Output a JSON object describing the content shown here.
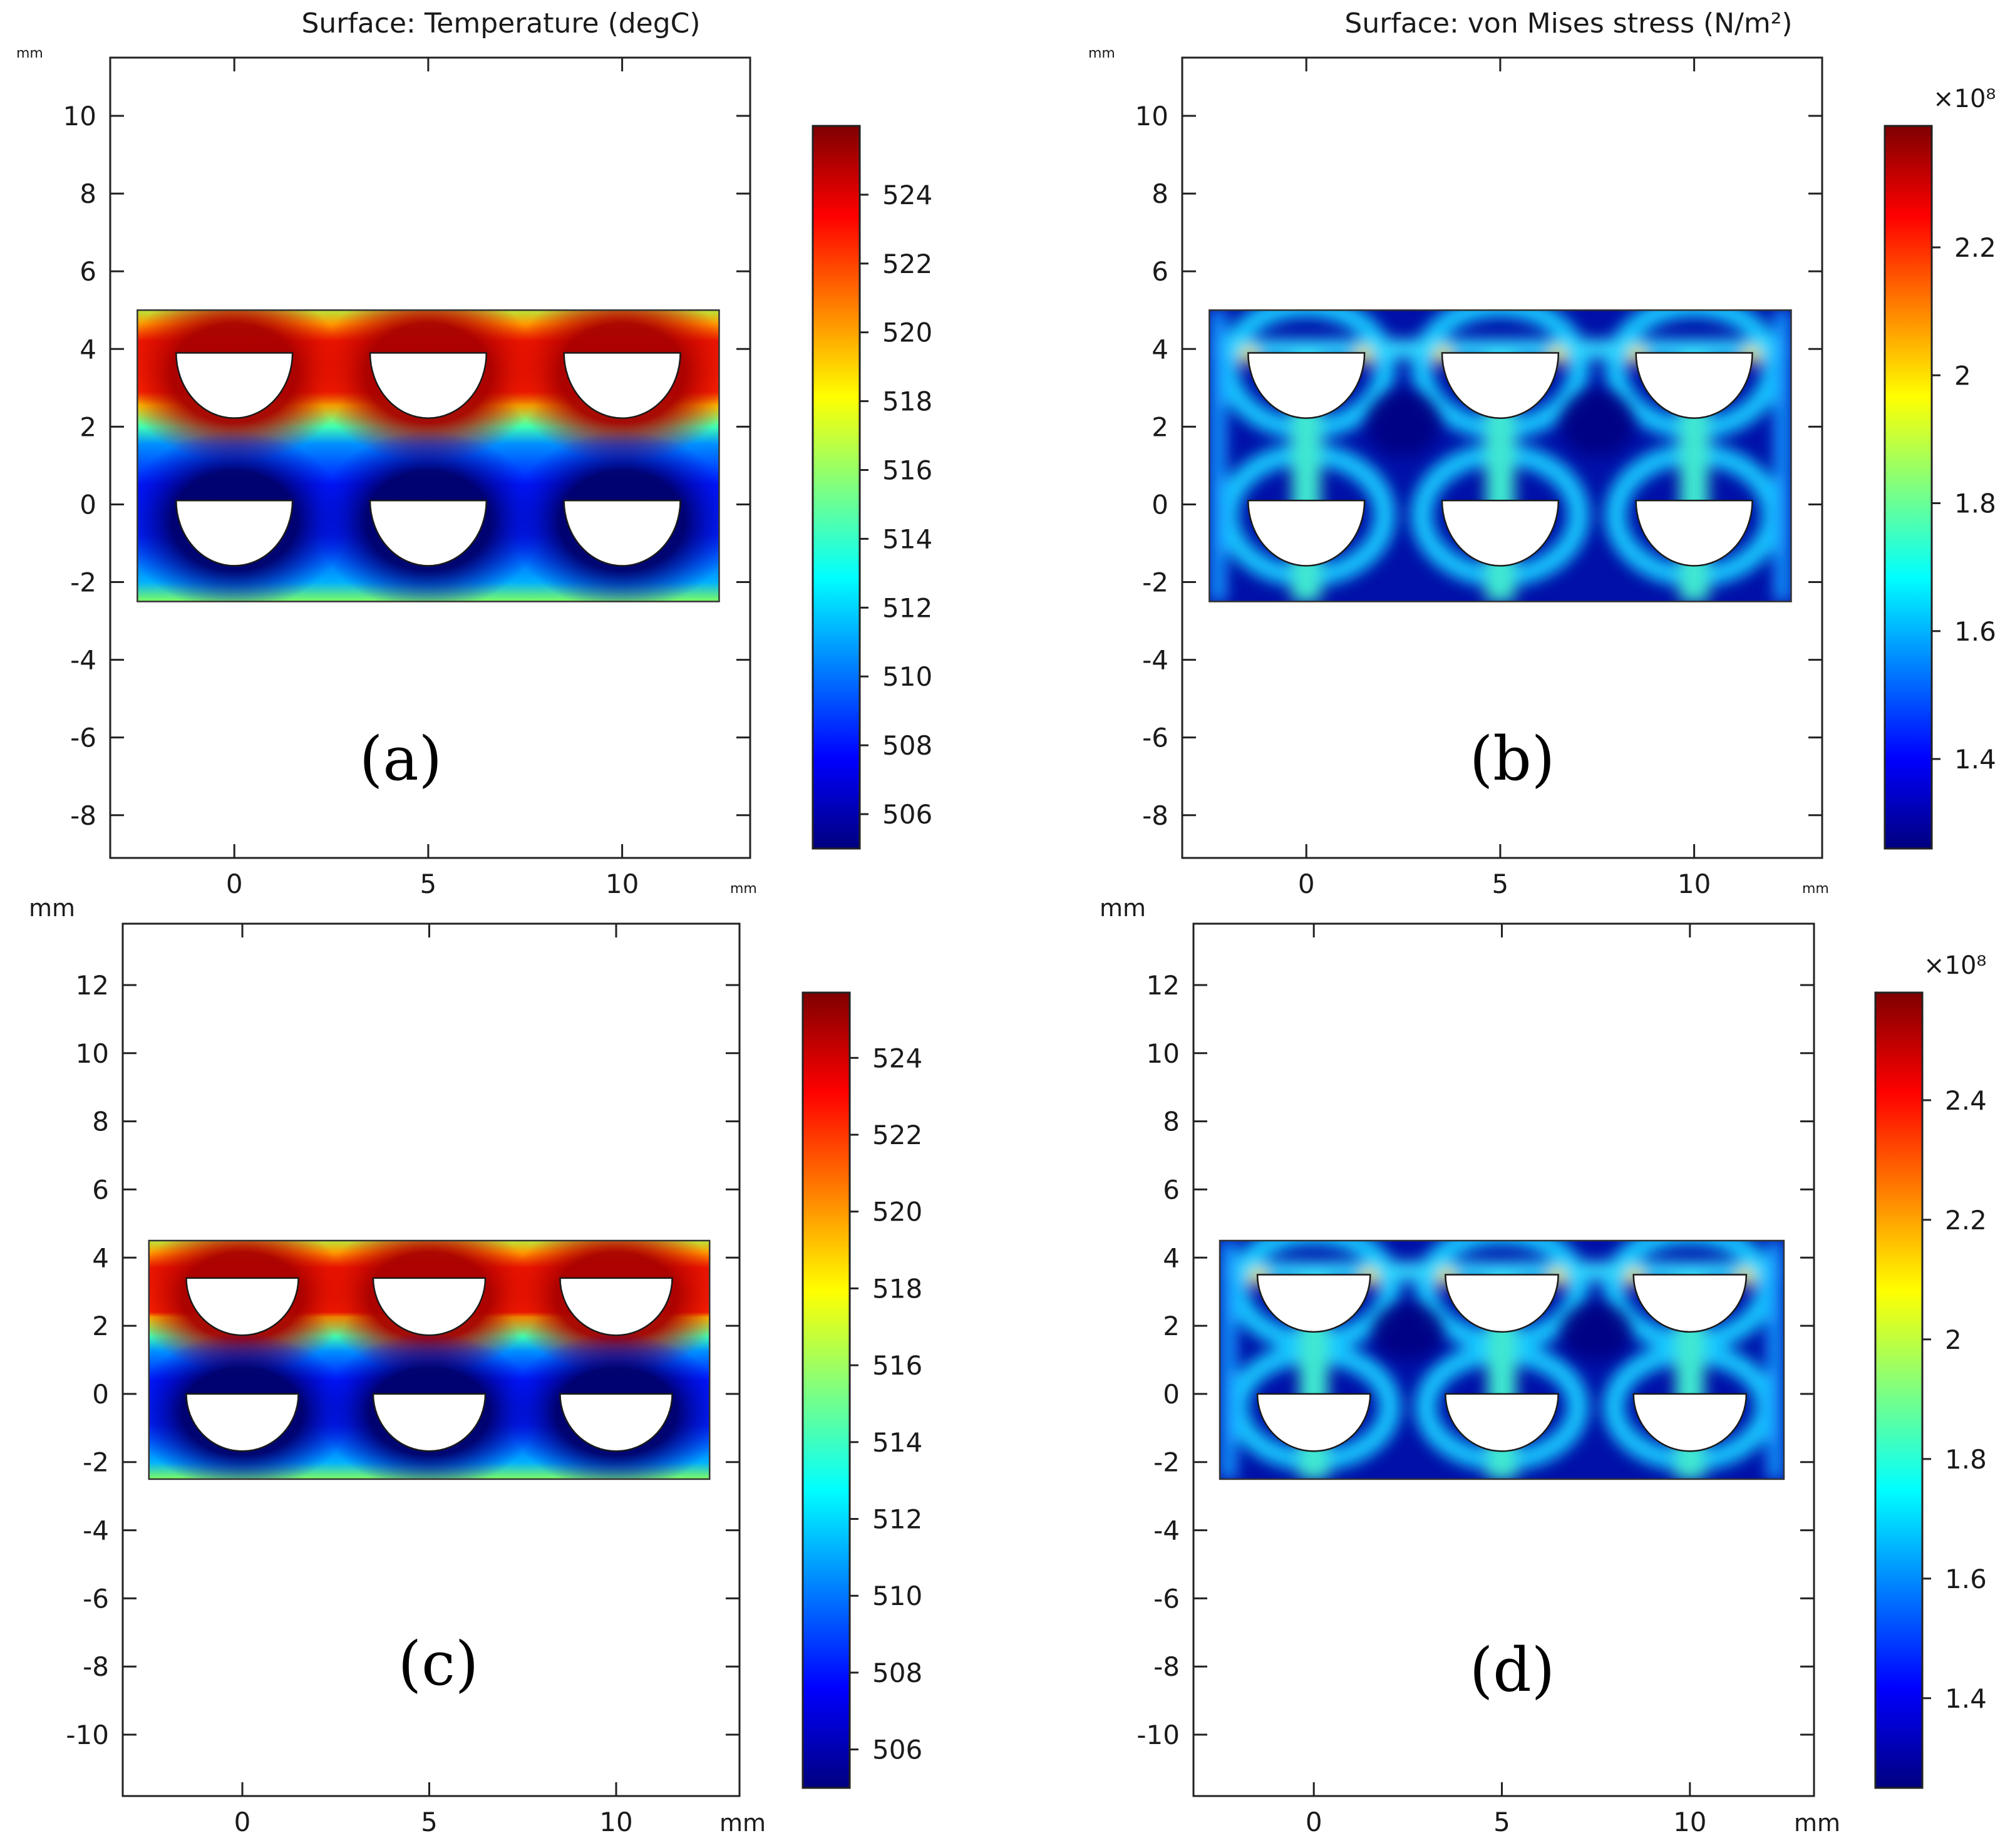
{
  "colors": {
    "frame": "#222222",
    "text": "#1a1a1a",
    "hole_fill": "#ffffff",
    "jet": [
      "#00007f",
      "#0000ff",
      "#007fff",
      "#00ffff",
      "#7fff7f",
      "#ffff00",
      "#ff7f00",
      "#ff0000",
      "#7f0000"
    ]
  },
  "chart_data": [
    {
      "id": "a",
      "type": "heatmap",
      "title": "Surface: Temperature (degC)",
      "panel_label": "(a)",
      "field": "temperature",
      "xlabel": "mm",
      "ylabel": "mm",
      "xlim": [
        -3.2,
        13.3
      ],
      "ylim": [
        -9.1,
        11.5
      ],
      "xticks": [
        0,
        5,
        10
      ],
      "yticks": [
        -8,
        -6,
        -4,
        -2,
        0,
        2,
        4,
        6,
        8,
        10
      ],
      "domain": {
        "x": [
          -2.5,
          12.5
        ],
        "y": [
          -2.5,
          5
        ]
      },
      "holes": [
        {
          "cx": 0,
          "cy": 3.9,
          "r": 1.5
        },
        {
          "cx": 5,
          "cy": 3.9,
          "r": 1.5
        },
        {
          "cx": 10,
          "cy": 3.9,
          "r": 1.5
        },
        {
          "cx": 0,
          "cy": 0.1,
          "r": 1.5
        },
        {
          "cx": 5,
          "cy": 0.1,
          "r": 1.5
        },
        {
          "cx": 10,
          "cy": 0.1,
          "r": 1.5
        }
      ],
      "colorbar": {
        "range": [
          505,
          526
        ],
        "ticks": [
          506,
          508,
          510,
          512,
          514,
          516,
          518,
          520,
          522,
          524
        ],
        "multiplier": ""
      }
    },
    {
      "id": "b",
      "type": "heatmap",
      "title": "Surface: von Mises stress (N/m²)",
      "panel_label": "(b)",
      "field": "stress",
      "xlabel": "mm",
      "ylabel": "mm",
      "xlim": [
        -3.2,
        13.3
      ],
      "ylim": [
        -9.1,
        11.5
      ],
      "xticks": [
        0,
        5,
        10
      ],
      "yticks": [
        -8,
        -6,
        -4,
        -2,
        0,
        2,
        4,
        6,
        8,
        10
      ],
      "domain": {
        "x": [
          -2.5,
          12.5
        ],
        "y": [
          -2.5,
          5
        ]
      },
      "holes": [
        {
          "cx": 0,
          "cy": 3.9,
          "r": 1.5
        },
        {
          "cx": 5,
          "cy": 3.9,
          "r": 1.5
        },
        {
          "cx": 10,
          "cy": 3.9,
          "r": 1.5
        },
        {
          "cx": 0,
          "cy": 0.1,
          "r": 1.5
        },
        {
          "cx": 5,
          "cy": 0.1,
          "r": 1.5
        },
        {
          "cx": 10,
          "cy": 0.1,
          "r": 1.5
        }
      ],
      "colorbar": {
        "range": [
          1.26,
          2.39
        ],
        "ticks": [
          1.4,
          1.6,
          1.8,
          2,
          2.2
        ],
        "multiplier": "×10⁸"
      }
    },
    {
      "id": "c",
      "type": "heatmap",
      "title": "",
      "panel_label": "(c)",
      "field": "temperature",
      "xlabel": "mm",
      "ylabel": "mm",
      "xlim": [
        -3.2,
        13.3
      ],
      "ylim": [
        -11.8,
        13.8
      ],
      "xticks": [
        0,
        5,
        10
      ],
      "yticks": [
        -10,
        -8,
        -6,
        -4,
        -2,
        0,
        2,
        4,
        6,
        8,
        10,
        12
      ],
      "domain": {
        "x": [
          -2.5,
          12.5
        ],
        "y": [
          -2.5,
          4.5
        ]
      },
      "holes": [
        {
          "cx": 0,
          "cy": 3.4,
          "r": 1.5
        },
        {
          "cx": 5,
          "cy": 3.4,
          "r": 1.5
        },
        {
          "cx": 10,
          "cy": 3.4,
          "r": 1.5
        },
        {
          "cx": 0,
          "cy": 0.0,
          "r": 1.5
        },
        {
          "cx": 5,
          "cy": 0.0,
          "r": 1.5
        },
        {
          "cx": 10,
          "cy": 0.0,
          "r": 1.5
        }
      ],
      "colorbar": {
        "range": [
          505,
          525.7
        ],
        "ticks": [
          506,
          508,
          510,
          512,
          514,
          516,
          518,
          520,
          522,
          524
        ],
        "multiplier": ""
      }
    },
    {
      "id": "d",
      "type": "heatmap",
      "title": "",
      "panel_label": "(d)",
      "field": "stress",
      "xlabel": "mm",
      "ylabel": "mm",
      "xlim": [
        -3.2,
        13.3
      ],
      "ylim": [
        -11.8,
        13.8
      ],
      "xticks": [
        0,
        5,
        10
      ],
      "yticks": [
        -10,
        -8,
        -6,
        -4,
        -2,
        0,
        2,
        4,
        6,
        8,
        10,
        12
      ],
      "domain": {
        "x": [
          -2.5,
          12.5
        ],
        "y": [
          -2.5,
          4.5
        ]
      },
      "holes": [
        {
          "cx": 0,
          "cy": 3.5,
          "r": 1.5
        },
        {
          "cx": 5,
          "cy": 3.5,
          "r": 1.5
        },
        {
          "cx": 10,
          "cy": 3.5,
          "r": 1.5
        },
        {
          "cx": 0,
          "cy": 0.0,
          "r": 1.5
        },
        {
          "cx": 5,
          "cy": 0.0,
          "r": 1.5
        },
        {
          "cx": 10,
          "cy": 0.0,
          "r": 1.5
        }
      ],
      "colorbar": {
        "range": [
          1.25,
          2.58
        ],
        "ticks": [
          1.4,
          1.6,
          1.8,
          2,
          2.2,
          2.4
        ],
        "multiplier": "×10⁸"
      }
    }
  ]
}
